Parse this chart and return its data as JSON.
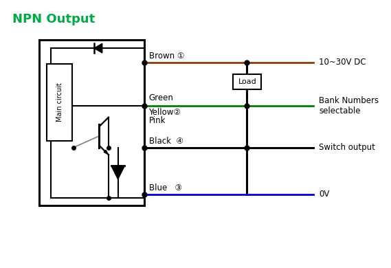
{
  "title": "NPN Output",
  "title_color": "#00aa44",
  "title_fontsize": 13,
  "bg_color": "#ffffff",
  "wire_color_brown": "#8B3A0A",
  "wire_color_green": "#008000",
  "wire_color_blue": "#0000CC",
  "wire_color_black": "#000000",
  "labels": {
    "brown": "Brown ①",
    "green": "Green",
    "yellow": "Yellow②",
    "pink": "Pink",
    "black": "Black  ④",
    "blue": "Blue   ③"
  },
  "right_labels": {
    "dc": "10~30V DC",
    "bank": "Bank Numbers\nselectable",
    "switch": "Switch output",
    "zero": "0V"
  },
  "load_label": "Load",
  "main_circuit_label": "Main circuit"
}
